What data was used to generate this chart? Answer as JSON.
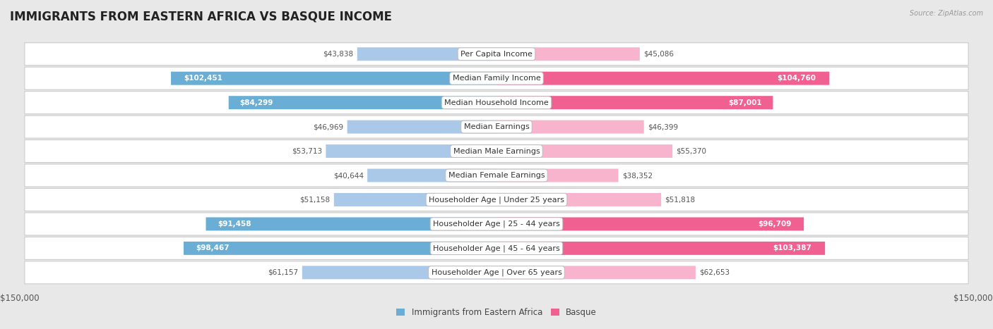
{
  "title": "IMMIGRANTS FROM EASTERN AFRICA VS BASQUE INCOME",
  "source": "Source: ZipAtlas.com",
  "categories": [
    "Per Capita Income",
    "Median Family Income",
    "Median Household Income",
    "Median Earnings",
    "Median Male Earnings",
    "Median Female Earnings",
    "Householder Age | Under 25 years",
    "Householder Age | 25 - 44 years",
    "Householder Age | 45 - 64 years",
    "Householder Age | Over 65 years"
  ],
  "left_values": [
    43838,
    102451,
    84299,
    46969,
    53713,
    40644,
    51158,
    91458,
    98467,
    61157
  ],
  "right_values": [
    45086,
    104760,
    87001,
    46399,
    55370,
    38352,
    51818,
    96709,
    103387,
    62653
  ],
  "left_labels": [
    "$43,838",
    "$102,451",
    "$84,299",
    "$46,969",
    "$53,713",
    "$40,644",
    "$51,158",
    "$91,458",
    "$98,467",
    "$61,157"
  ],
  "right_labels": [
    "$45,086",
    "$104,760",
    "$87,001",
    "$46,399",
    "$55,370",
    "$38,352",
    "$51,818",
    "$96,709",
    "$103,387",
    "$62,653"
  ],
  "left_color_light": "#aac9e8",
  "left_color_dark": "#6aaed6",
  "right_color_light": "#f8b4cc",
  "right_color_dark": "#f06090",
  "inside_threshold": 65000,
  "max_value": 150000,
  "bar_height": 0.52,
  "background_color": "#e8e8e8",
  "row_bg_color": "#ffffff",
  "legend_left": "Immigrants from Eastern Africa",
  "legend_right": "Basque",
  "xlabel_left": "$150,000",
  "xlabel_right": "$150,000",
  "title_fontsize": 12,
  "label_fontsize": 8.5,
  "cat_fontsize": 8.0,
  "value_fontsize": 7.5
}
